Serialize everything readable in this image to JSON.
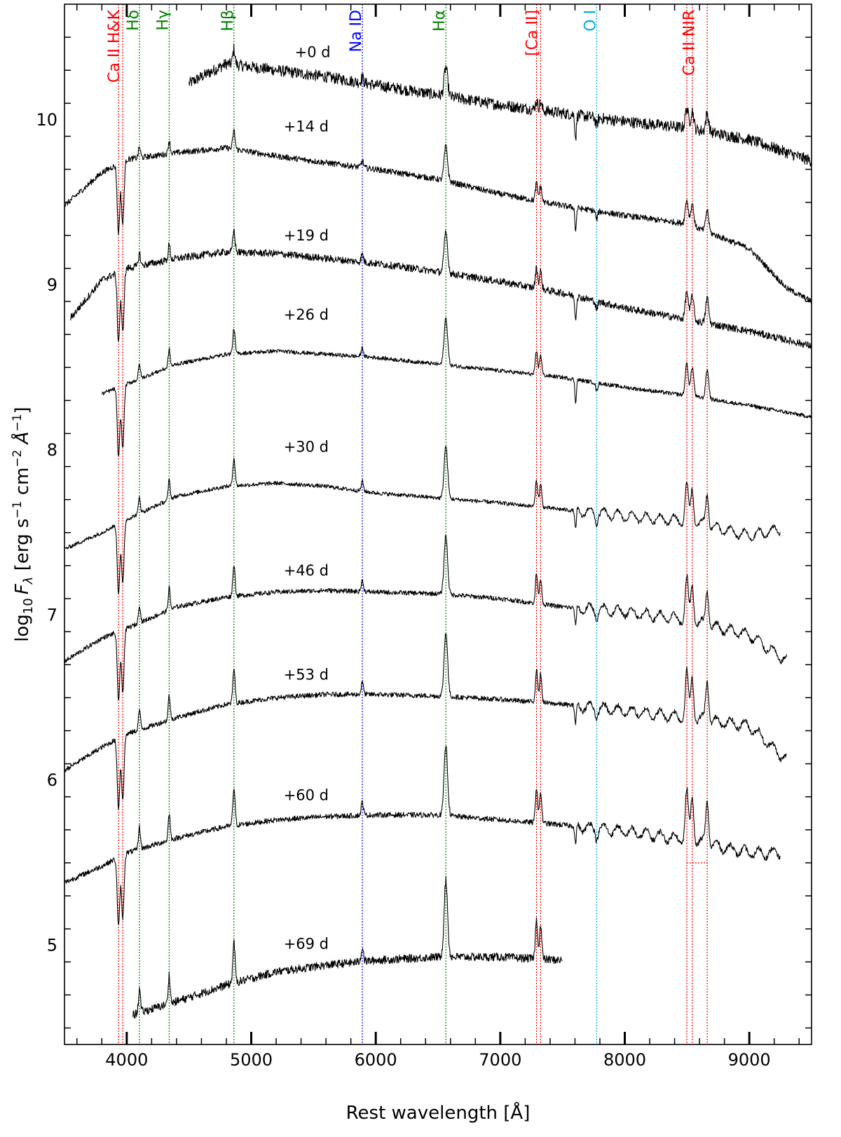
{
  "chart_data": {
    "type": "line",
    "xlabel": "Rest wavelength [Å]",
    "ylabel_parts": {
      "prefix": "log",
      "sub": "10",
      "var": "F",
      "var_sub": "λ",
      "units_open": " [erg s",
      "exp1": "−1",
      "mid1": " cm",
      "exp2": "−2",
      "unit_var": " Å",
      "exp3": "−1",
      "units_close": "]"
    },
    "xlim": [
      3500,
      9500
    ],
    "ylim": [
      4.4,
      10.7
    ],
    "x_ticks": [
      4000,
      5000,
      6000,
      7000,
      8000,
      9000
    ],
    "x_tick_labels": [
      "4000",
      "5000",
      "6000",
      "7000",
      "8000",
      "9000"
    ],
    "y_ticks": [
      5,
      6,
      7,
      8,
      9,
      10
    ],
    "y_tick_labels": [
      "5",
      "6",
      "7",
      "8",
      "9",
      "10"
    ],
    "grid": false,
    "line_identifications": [
      {
        "label": "Ca II H&K",
        "color": "#ff0000",
        "wavelengths": [
          3934,
          3968
        ]
      },
      {
        "label": "Hδ",
        "color": "#008000",
        "wavelengths": [
          4102
        ]
      },
      {
        "label": "Hγ",
        "color": "#008000",
        "wavelengths": [
          4341
        ]
      },
      {
        "label": "Hβ",
        "color": "#008000",
        "wavelengths": [
          4861
        ]
      },
      {
        "label": "Na ID",
        "color": "#0000ff",
        "wavelengths": [
          5892
        ]
      },
      {
        "label": "Hα",
        "color": "#008000",
        "wavelengths": [
          6563
        ]
      },
      {
        "label": "[Ca II]",
        "color": "#ff0000",
        "wavelengths": [
          7291,
          7324
        ]
      },
      {
        "label": "O I",
        "color": "#00aaee",
        "wavelengths": [
          7774
        ]
      },
      {
        "label": "Ca II NIR",
        "color": "#ff0000",
        "wavelengths": [
          8498,
          8542,
          8662
        ]
      }
    ],
    "series": [
      {
        "label": "+0 d",
        "label_x": 5350,
        "label_y": 10.38,
        "x_start": 4500,
        "x_end": 9500,
        "continuum": [
          [
            4500,
            10.22
          ],
          [
            4800,
            10.34
          ],
          [
            5200,
            10.3
          ],
          [
            5600,
            10.26
          ],
          [
            6000,
            10.21
          ],
          [
            6500,
            10.15
          ],
          [
            7000,
            10.09
          ],
          [
            7500,
            10.04
          ],
          [
            8000,
            9.99
          ],
          [
            8500,
            9.95
          ],
          [
            9000,
            9.88
          ],
          [
            9500,
            9.75
          ]
        ],
        "noise": 0.035
      },
      {
        "label": "+14 d",
        "label_x": 5260,
        "label_y": 9.93,
        "x_start": 3500,
        "x_end": 9500,
        "continuum": [
          [
            3500,
            9.48
          ],
          [
            3800,
            9.68
          ],
          [
            4000,
            9.76
          ],
          [
            4400,
            9.8
          ],
          [
            4800,
            9.83
          ],
          [
            5200,
            9.78
          ],
          [
            5600,
            9.74
          ],
          [
            6000,
            9.7
          ],
          [
            6500,
            9.64
          ],
          [
            7000,
            9.55
          ],
          [
            7500,
            9.48
          ],
          [
            8000,
            9.42
          ],
          [
            8500,
            9.37
          ],
          [
            9000,
            9.22
          ],
          [
            9300,
            8.98
          ],
          [
            9500,
            8.9
          ]
        ],
        "noise": 0.018
      },
      {
        "label": "+19 d",
        "label_x": 5260,
        "label_y": 9.27,
        "x_start": 3550,
        "x_end": 9500,
        "continuum": [
          [
            3550,
            8.8
          ],
          [
            3800,
            9.03
          ],
          [
            4000,
            9.1
          ],
          [
            4400,
            9.16
          ],
          [
            4800,
            9.2
          ],
          [
            5200,
            9.19
          ],
          [
            5600,
            9.16
          ],
          [
            6000,
            9.13
          ],
          [
            6500,
            9.08
          ],
          [
            7000,
            9.02
          ],
          [
            7500,
            8.95
          ],
          [
            8000,
            8.86
          ],
          [
            8500,
            8.79
          ],
          [
            9000,
            8.72
          ],
          [
            9500,
            8.63
          ]
        ],
        "noise": 0.022
      },
      {
        "label": "+26 d",
        "label_x": 5260,
        "label_y": 8.79,
        "x_start": 3800,
        "x_end": 9500,
        "continuum": [
          [
            3800,
            8.34
          ],
          [
            4000,
            8.4
          ],
          [
            4400,
            8.52
          ],
          [
            4800,
            8.58
          ],
          [
            5200,
            8.6
          ],
          [
            5600,
            8.58
          ],
          [
            6000,
            8.56
          ],
          [
            6500,
            8.52
          ],
          [
            7000,
            8.48
          ],
          [
            7500,
            8.44
          ],
          [
            8000,
            8.38
          ],
          [
            8500,
            8.33
          ],
          [
            9000,
            8.27
          ],
          [
            9500,
            8.2
          ]
        ],
        "noise": 0.012
      },
      {
        "label": "+30 d",
        "label_x": 5260,
        "label_y": 7.99,
        "x_start": 3500,
        "x_end": 9250,
        "continuum": [
          [
            3500,
            7.4
          ],
          [
            3800,
            7.5
          ],
          [
            4000,
            7.58
          ],
          [
            4400,
            7.72
          ],
          [
            4800,
            7.78
          ],
          [
            5200,
            7.8
          ],
          [
            5600,
            7.78
          ],
          [
            6000,
            7.74
          ],
          [
            6500,
            7.71
          ],
          [
            7000,
            7.68
          ],
          [
            7500,
            7.64
          ],
          [
            8000,
            7.6
          ],
          [
            8500,
            7.57
          ],
          [
            9000,
            7.48
          ],
          [
            9250,
            7.52
          ]
        ],
        "noise": 0.012
      },
      {
        "label": "+46 d",
        "label_x": 5260,
        "label_y": 7.24,
        "x_start": 3500,
        "x_end": 9300,
        "continuum": [
          [
            3500,
            6.72
          ],
          [
            3800,
            6.86
          ],
          [
            4000,
            6.92
          ],
          [
            4400,
            7.05
          ],
          [
            4800,
            7.11
          ],
          [
            5200,
            7.14
          ],
          [
            5600,
            7.15
          ],
          [
            6000,
            7.14
          ],
          [
            6500,
            7.13
          ],
          [
            7000,
            7.1
          ],
          [
            7500,
            7.05
          ],
          [
            8000,
            7.02
          ],
          [
            8500,
            6.97
          ],
          [
            9000,
            6.88
          ],
          [
            9300,
            6.72
          ]
        ],
        "noise": 0.014
      },
      {
        "label": "+53 d",
        "label_x": 5260,
        "label_y": 6.61,
        "x_start": 3500,
        "x_end": 9300,
        "continuum": [
          [
            3500,
            6.06
          ],
          [
            3800,
            6.2
          ],
          [
            4000,
            6.28
          ],
          [
            4400,
            6.38
          ],
          [
            4800,
            6.46
          ],
          [
            5200,
            6.5
          ],
          [
            5600,
            6.52
          ],
          [
            6000,
            6.52
          ],
          [
            6500,
            6.51
          ],
          [
            7000,
            6.49
          ],
          [
            7500,
            6.46
          ],
          [
            8000,
            6.42
          ],
          [
            8500,
            6.38
          ],
          [
            9000,
            6.33
          ],
          [
            9300,
            6.12
          ]
        ],
        "noise": 0.015
      },
      {
        "label": "+60 d",
        "label_x": 5260,
        "label_y": 5.88,
        "x_start": 3500,
        "x_end": 9250,
        "continuum": [
          [
            3500,
            5.38
          ],
          [
            3800,
            5.48
          ],
          [
            4000,
            5.56
          ],
          [
            4400,
            5.65
          ],
          [
            4800,
            5.72
          ],
          [
            5200,
            5.76
          ],
          [
            5600,
            5.78
          ],
          [
            6000,
            5.79
          ],
          [
            6500,
            5.79
          ],
          [
            7000,
            5.76
          ],
          [
            7500,
            5.73
          ],
          [
            8000,
            5.69
          ],
          [
            8500,
            5.64
          ],
          [
            9000,
            5.56
          ],
          [
            9250,
            5.56
          ]
        ],
        "noise": 0.016
      },
      {
        "label": "+69 d",
        "label_x": 5260,
        "label_y": 4.98,
        "x_start": 4050,
        "x_end": 7500,
        "continuum": [
          [
            4050,
            4.58
          ],
          [
            4400,
            4.66
          ],
          [
            4800,
            4.76
          ],
          [
            5200,
            4.84
          ],
          [
            5600,
            4.88
          ],
          [
            6000,
            4.91
          ],
          [
            6500,
            4.93
          ],
          [
            7000,
            4.93
          ],
          [
            7500,
            4.91
          ]
        ],
        "noise": 0.025
      }
    ]
  }
}
